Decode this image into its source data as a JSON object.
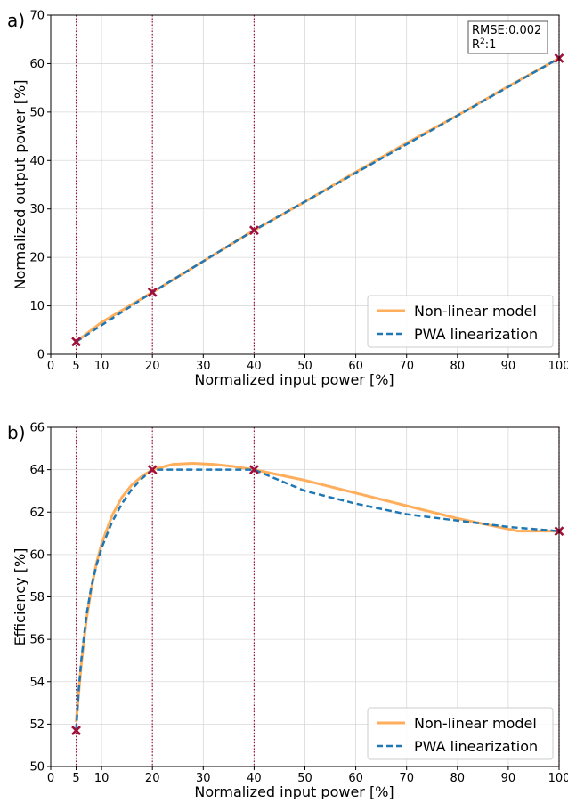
{
  "chart_data": [
    {
      "type": "line",
      "panel_label": "a)",
      "xlabel": "Normalized input power [%]",
      "ylabel": "Normalized output power [%]",
      "xlim": [
        0,
        100
      ],
      "ylim": [
        0,
        70
      ],
      "xticks": [
        0,
        5,
        10,
        20,
        30,
        40,
        50,
        60,
        70,
        80,
        90,
        100
      ],
      "yticks": [
        0,
        10,
        20,
        30,
        40,
        50,
        60,
        70
      ],
      "grid": true,
      "legend_position": "bottom-right",
      "breakpoints": [
        5,
        20,
        40,
        100
      ],
      "annotation": {
        "rmse": "RMSE:0.002",
        "r2_label": "R",
        "r2_sup": "2",
        "r2_value": ":1"
      },
      "series": [
        {
          "name": "Non-linear model",
          "color": "#ffae5c",
          "style": "solid",
          "x": [
            5,
            10,
            20,
            30,
            40,
            50,
            60,
            70,
            80,
            90,
            100
          ],
          "y": [
            2.6,
            6.6,
            12.8,
            19.2,
            25.6,
            31.5,
            37.6,
            43.6,
            49.3,
            55.3,
            61.1
          ]
        },
        {
          "name": "PWA linearization",
          "color": "#1f77b4",
          "style": "dashed",
          "x": [
            5,
            20,
            40,
            100
          ],
          "y": [
            2.6,
            12.8,
            25.6,
            61.1
          ]
        }
      ],
      "markers": {
        "x": [
          5,
          20,
          40,
          100
        ],
        "y": [
          2.6,
          12.8,
          25.6,
          61.1
        ],
        "color": "#a0103a"
      }
    },
    {
      "type": "line",
      "panel_label": "b)",
      "xlabel": "Normalized input power [%]",
      "ylabel": "Efficiency [%]",
      "xlim": [
        0,
        100
      ],
      "ylim": [
        50,
        66
      ],
      "xticks": [
        0,
        5,
        10,
        20,
        30,
        40,
        50,
        60,
        70,
        80,
        90,
        100
      ],
      "yticks": [
        50,
        52,
        54,
        56,
        58,
        60,
        62,
        64,
        66
      ],
      "grid": true,
      "legend_position": "bottom-right",
      "breakpoints": [
        5,
        20,
        40,
        100
      ],
      "series": [
        {
          "name": "Non-linear model",
          "color": "#ffae5c",
          "style": "solid",
          "x": [
            5,
            6,
            7,
            8,
            9,
            10,
            12,
            14,
            16,
            18,
            20,
            24,
            28,
            32,
            36,
            40,
            50,
            60,
            70,
            80,
            88,
            92,
            96,
            100
          ],
          "y": [
            52.1,
            54.8,
            56.9,
            58.4,
            59.6,
            60.5,
            61.8,
            62.7,
            63.3,
            63.7,
            64.0,
            64.25,
            64.3,
            64.25,
            64.15,
            64.0,
            63.5,
            62.9,
            62.3,
            61.7,
            61.3,
            61.1,
            61.1,
            61.1
          ]
        },
        {
          "name": "PWA linearization",
          "color": "#1f77b4",
          "style": "dashed",
          "x": [
            5,
            5.5,
            6,
            7,
            8,
            9,
            10,
            12,
            14,
            16,
            18,
            20,
            25,
            30,
            35,
            40,
            45,
            50,
            60,
            70,
            80,
            90,
            100
          ],
          "y": [
            51.7,
            53.6,
            55.0,
            57.1,
            58.5,
            59.5,
            60.3,
            61.5,
            62.4,
            63.1,
            63.6,
            64.0,
            64.0,
            64.0,
            64.0,
            64.0,
            63.5,
            63.0,
            62.4,
            61.9,
            61.6,
            61.3,
            61.1
          ]
        }
      ],
      "markers": {
        "x": [
          5,
          20,
          40,
          100
        ],
        "y": [
          51.7,
          64.0,
          64.0,
          61.1
        ],
        "color": "#a0103a"
      }
    }
  ]
}
